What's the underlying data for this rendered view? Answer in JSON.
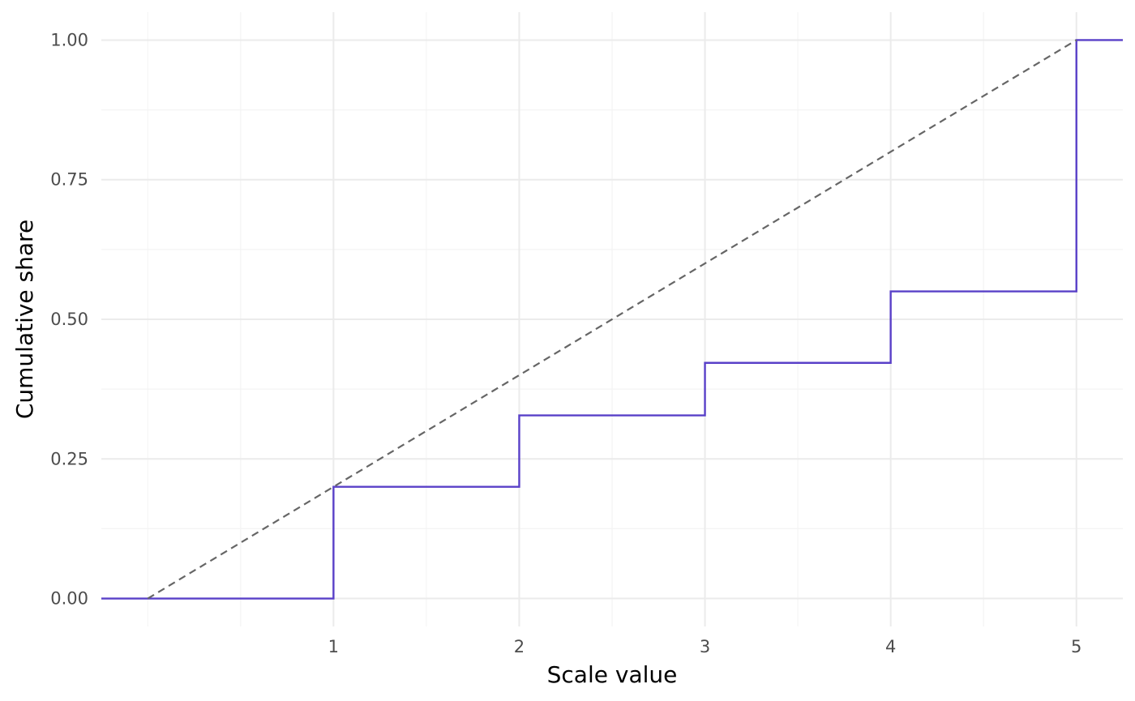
{
  "chart_data": {
    "type": "line",
    "xlabel": "Scale value",
    "ylabel": "Cumulative share",
    "xlim": [
      -0.25,
      5.25
    ],
    "ylim": [
      -0.05,
      1.05
    ],
    "x_ticks": [
      1,
      2,
      3,
      4,
      5
    ],
    "x_tick_labels": [
      "1",
      "2",
      "3",
      "4",
      "5"
    ],
    "x_minor_ticks": [
      0,
      0.5,
      1.5,
      2.5,
      3.5,
      4.5
    ],
    "y_ticks": [
      0,
      0.25,
      0.5,
      0.75,
      1
    ],
    "y_tick_labels": [
      "0.00",
      "0.25",
      "0.50",
      "0.75",
      "1.00"
    ],
    "y_minor_ticks": [
      0.125,
      0.375,
      0.625,
      0.875
    ],
    "grid": true,
    "series": [
      {
        "style": "step",
        "color": "#5940c8",
        "x": [
          -0.25,
          1,
          2,
          3,
          4,
          5,
          5.25
        ],
        "y": [
          0,
          0.2,
          0.328,
          0.422,
          0.55,
          1,
          1
        ]
      },
      {
        "style": "dashed",
        "color": "#666666",
        "x": [
          0,
          5
        ],
        "y": [
          0,
          1
        ]
      }
    ]
  }
}
